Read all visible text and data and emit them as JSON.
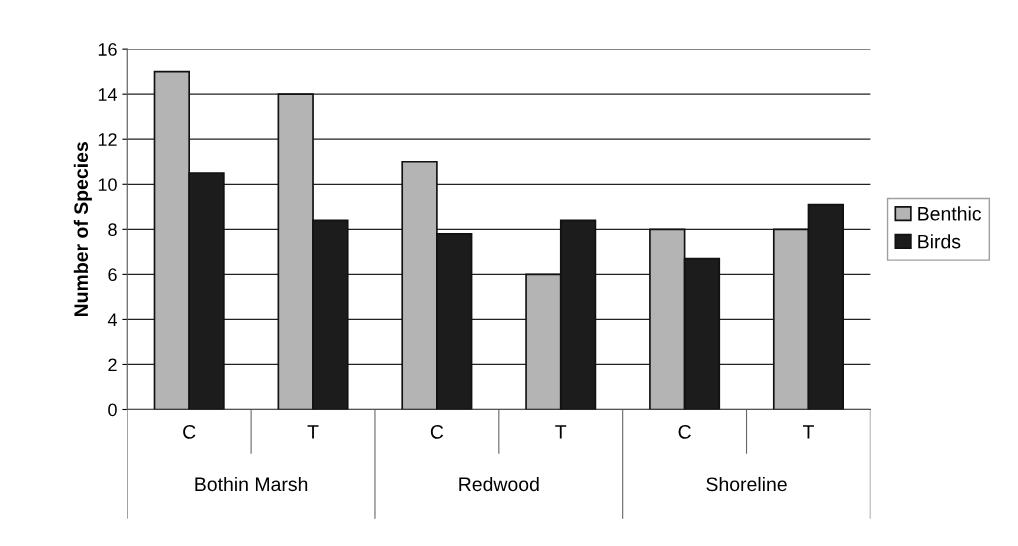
{
  "chart_data": {
    "type": "bar",
    "ylabel": "Number of Species",
    "categories": [
      "C",
      "T",
      "C",
      "T",
      "C",
      "T"
    ],
    "series": [
      {
        "name": "Benthic",
        "color": "#b4b4b4",
        "values": [
          15,
          14,
          11,
          6,
          8,
          8
        ]
      },
      {
        "name": "Birds",
        "color": "#1c1c1c",
        "values": [
          10.5,
          8.4,
          7.8,
          8.4,
          6.7,
          9.1
        ]
      }
    ],
    "annotations": [
      "Bothin Marsh",
      "Redwood",
      "Shoreline"
    ],
    "ylim": [
      0,
      16
    ],
    "yticks": [
      0,
      2,
      4,
      6,
      8,
      10,
      12,
      14,
      16
    ],
    "grid": "y",
    "legend": "right"
  }
}
